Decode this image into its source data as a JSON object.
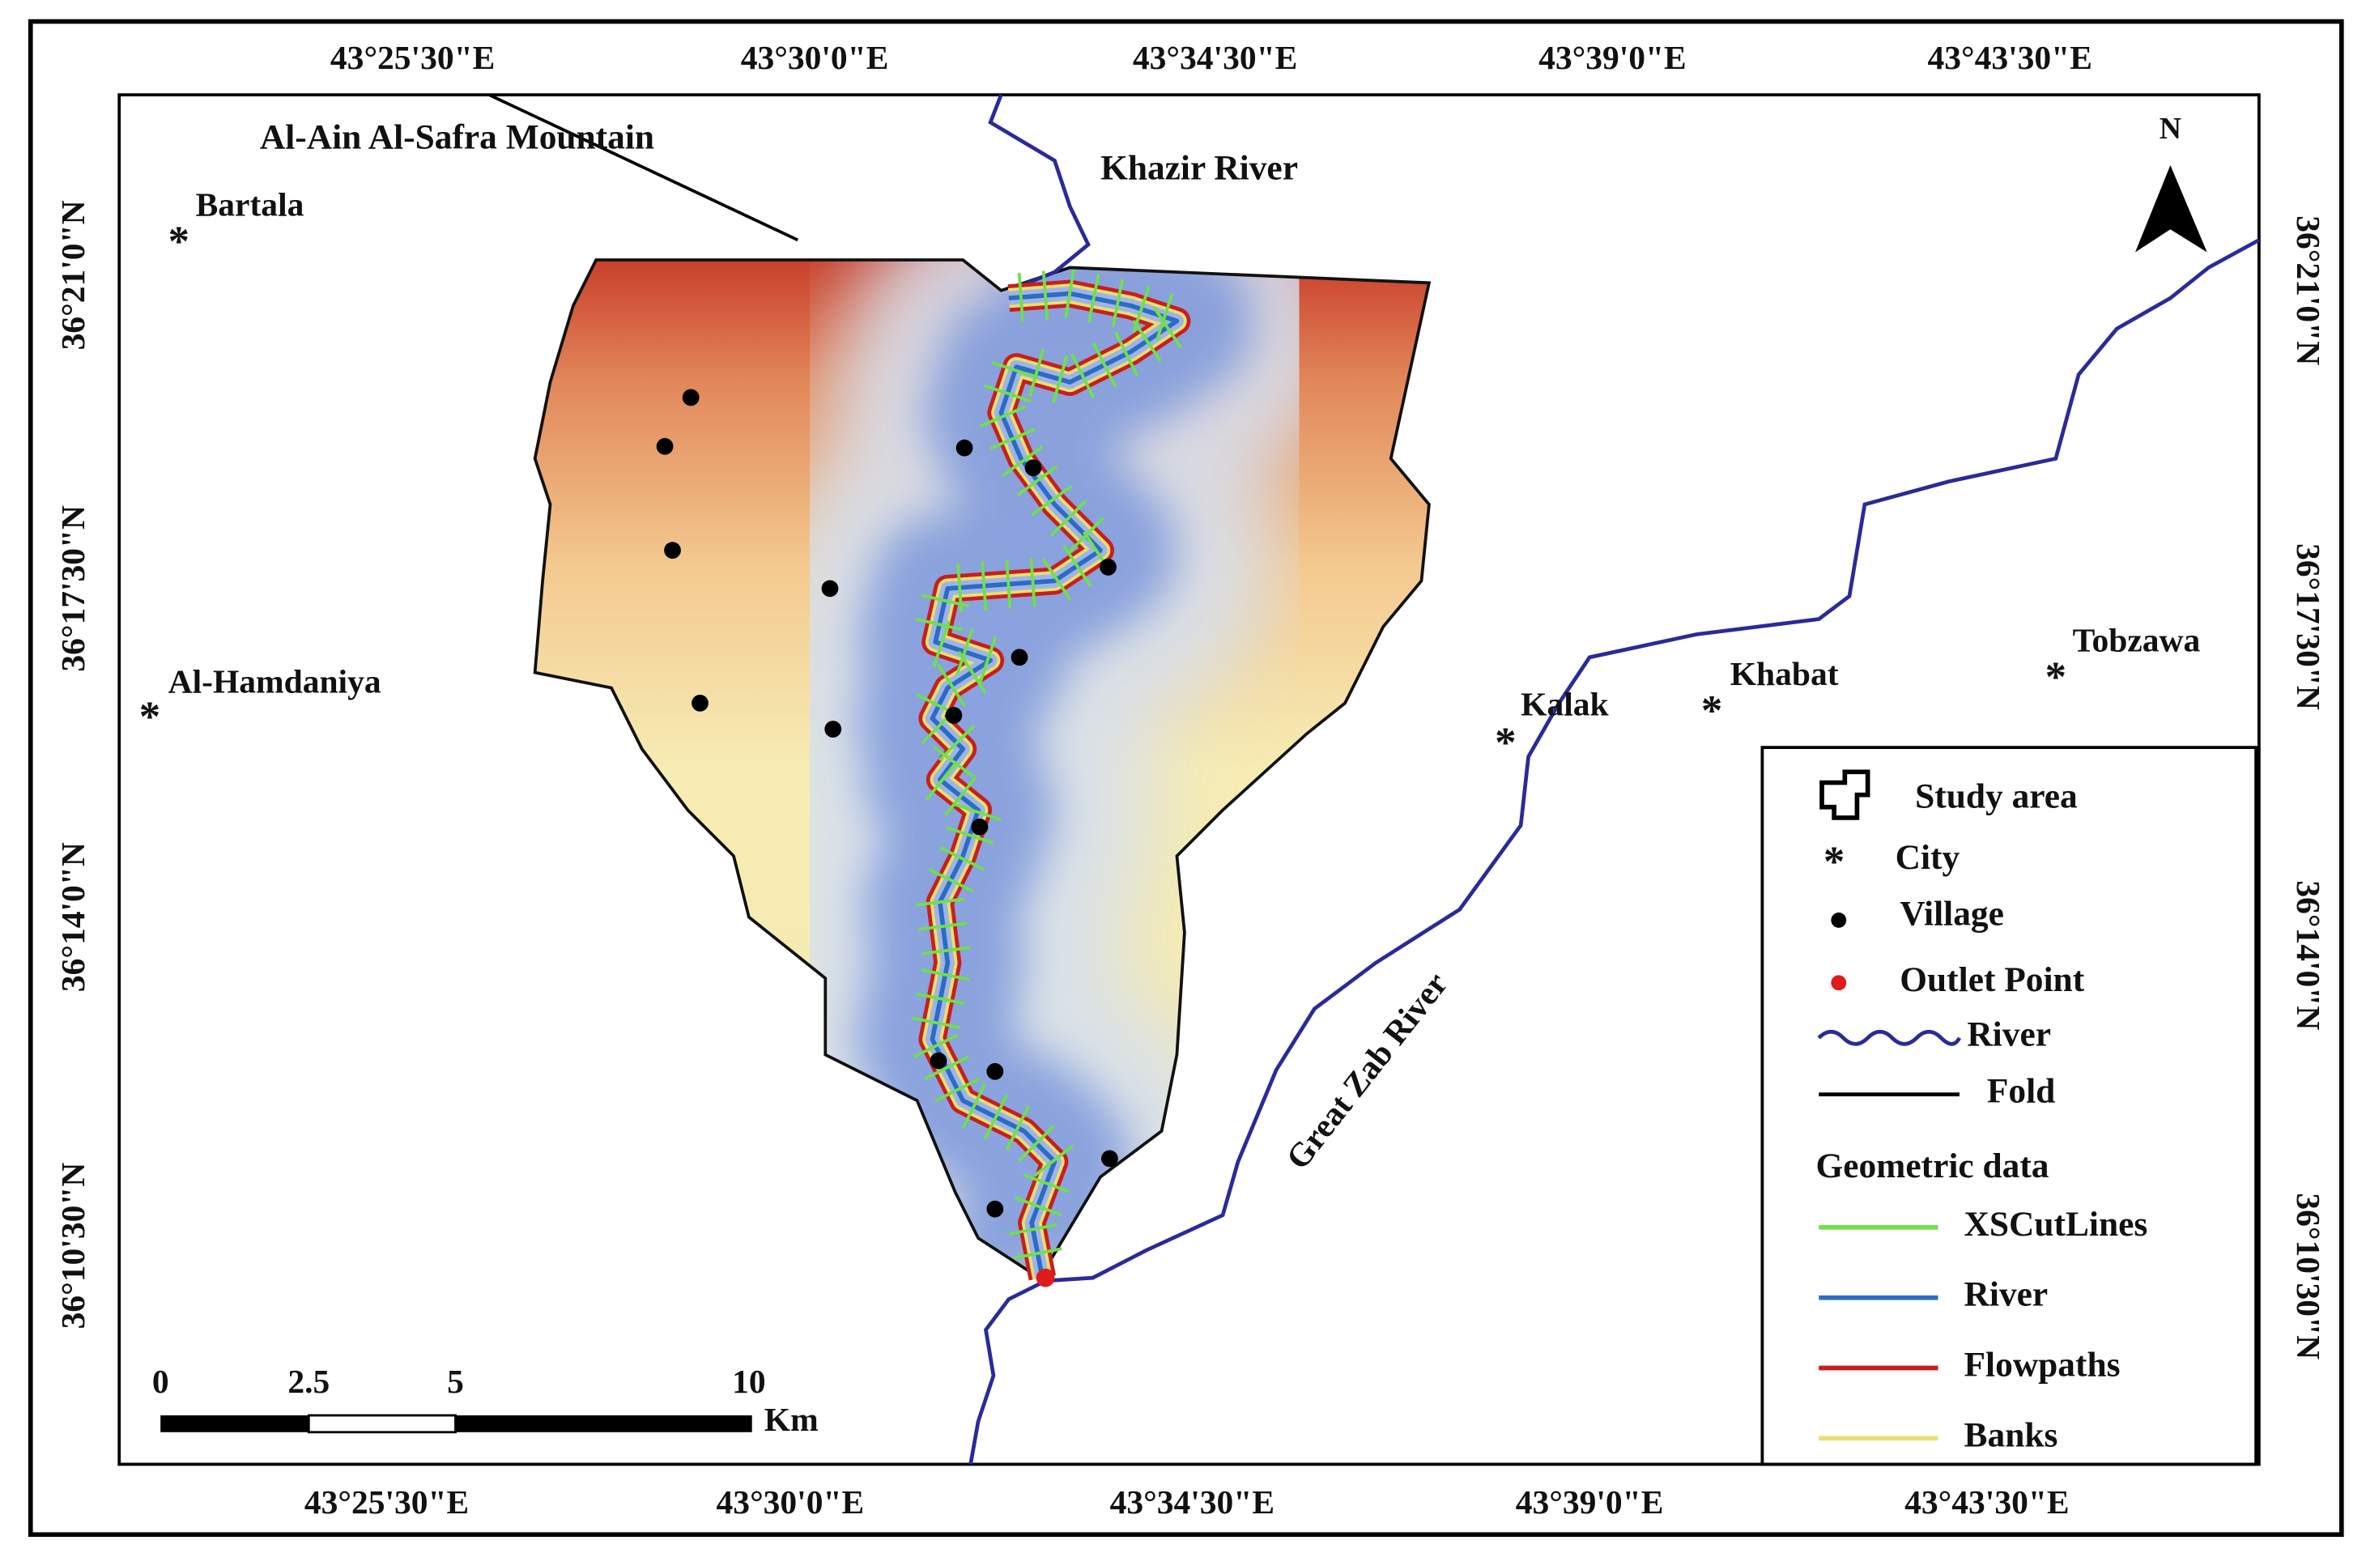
{
  "map": {
    "top_ticks": [
      "43°25'30\"E",
      "43°30'0\"E",
      "43°34'30\"E",
      "43°39'0\"E",
      "43°43'30\"E"
    ],
    "bottom_ticks": [
      "43°25'30\"E",
      "43°30'0\"E",
      "43°34'30\"E",
      "43°39'0\"E",
      "43°43'30\"E"
    ],
    "left_ticks": [
      "36°21'0\"N",
      "36°17'30\"N",
      "36°14'0\"N",
      "36°10'30\"N"
    ],
    "right_ticks": [
      "36°21'0\"N",
      "36°17'30\"N",
      "36°14'0\"N",
      "36°10'30\"N"
    ],
    "north": "N",
    "annotations": [
      "Al-Ain Al-Safra Mountain",
      "Khazir River",
      "Great Zab River"
    ],
    "cities": [
      "Bartala",
      "Al-Hamdaniya",
      "Kalak",
      "Khabat",
      "Tobzawa"
    ],
    "scale_bar": {
      "labels": [
        "0",
        "2.5",
        "5",
        "10"
      ],
      "unit": "Km"
    },
    "legend": {
      "items": [
        "Study area",
        "City",
        "Village",
        "Outlet Point",
        "River",
        "Fold"
      ],
      "group_title": "Geometric data",
      "group_items": [
        "XSCutLines",
        "River",
        "Flowpaths",
        "Banks"
      ]
    }
  }
}
